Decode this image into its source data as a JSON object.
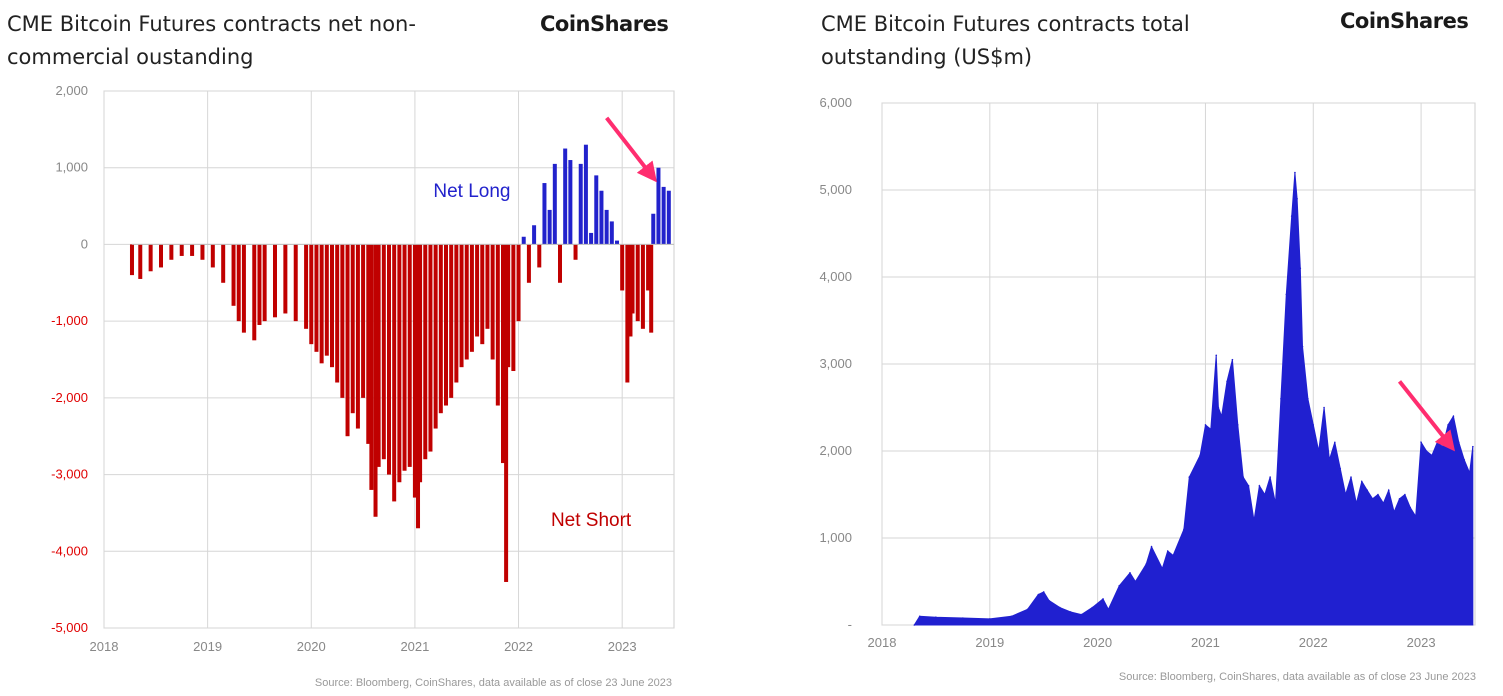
{
  "left": {
    "title": "CME Bitcoin Futures contracts net non-commercial oustanding",
    "logo": "CoinShares",
    "source": "Source: Bloomberg, CoinShares, data available as of close 23 June 2023",
    "chart_data": {
      "type": "bar",
      "title": "CME Bitcoin Futures contracts net non-commercial oustanding",
      "xlabel": "",
      "ylabel": "",
      "xlim": [
        2018.0,
        2023.5
      ],
      "ylim": [
        -5000,
        2000
      ],
      "yticks": [
        2000,
        1000,
        0,
        -1000,
        -2000,
        -3000,
        -4000,
        -5000
      ],
      "ytick_labels": [
        "2,000",
        "1,000",
        "0",
        "-1,000",
        "-2,000",
        "-3,000",
        "-4,000",
        "-5,000"
      ],
      "xticks": [
        2018,
        2019,
        2020,
        2021,
        2022,
        2023
      ],
      "xtick_labels": [
        "2018",
        "2019",
        "2020",
        "2021",
        "2022",
        "2023"
      ],
      "grid": true,
      "colors": {
        "positive": "#2222cc",
        "negative": "#c00000",
        "tick_positive": "#888888",
        "tick_negative": "#e00000"
      },
      "annotations": [
        {
          "text": "Net Long",
          "x": 2021.55,
          "y": 620,
          "color": "#2222cc"
        },
        {
          "text": "Net Short",
          "x": 2022.7,
          "y": -3670,
          "color": "#c00000"
        }
      ],
      "arrow": {
        "from": [
          2022.85,
          1650
        ],
        "to": [
          2023.3,
          870
        ],
        "color": "#ff2d6f"
      },
      "x": [
        2018.27,
        2018.35,
        2018.45,
        2018.55,
        2018.65,
        2018.75,
        2018.85,
        2018.95,
        2019.05,
        2019.15,
        2019.25,
        2019.3,
        2019.35,
        2019.45,
        2019.5,
        2019.55,
        2019.65,
        2019.75,
        2019.85,
        2019.95,
        2020.0,
        2020.05,
        2020.1,
        2020.15,
        2020.2,
        2020.25,
        2020.3,
        2020.35,
        2020.4,
        2020.45,
        2020.5,
        2020.55,
        2020.58,
        2020.62,
        2020.65,
        2020.7,
        2020.75,
        2020.8,
        2020.85,
        2020.9,
        2020.95,
        2021.0,
        2021.03,
        2021.05,
        2021.1,
        2021.15,
        2021.2,
        2021.25,
        2021.3,
        2021.35,
        2021.4,
        2021.45,
        2021.5,
        2021.55,
        2021.6,
        2021.65,
        2021.7,
        2021.75,
        2021.8,
        2021.85,
        2021.88,
        2021.9,
        2021.95,
        2022.0,
        2022.05,
        2022.1,
        2022.15,
        2022.2,
        2022.25,
        2022.3,
        2022.35,
        2022.4,
        2022.45,
        2022.5,
        2022.55,
        2022.6,
        2022.65,
        2022.7,
        2022.75,
        2022.8,
        2022.85,
        2022.9,
        2022.95,
        2023.0,
        2023.05,
        2023.08,
        2023.1,
        2023.15,
        2023.2,
        2023.25,
        2023.28,
        2023.3,
        2023.35,
        2023.4,
        2023.45
      ],
      "values": [
        -400,
        -450,
        -350,
        -300,
        -200,
        -150,
        -150,
        -200,
        -300,
        -500,
        -800,
        -1000,
        -1150,
        -1250,
        -1050,
        -1000,
        -950,
        -900,
        -1000,
        -1100,
        -1300,
        -1400,
        -1550,
        -1450,
        -1600,
        -1800,
        -2000,
        -2500,
        -2200,
        -2400,
        -2000,
        -2600,
        -3200,
        -3550,
        -2900,
        -2800,
        -3000,
        -3350,
        -3100,
        -2950,
        -2900,
        -3300,
        -3700,
        -3100,
        -2800,
        -2700,
        -2400,
        -2200,
        -2100,
        -2000,
        -1800,
        -1600,
        -1500,
        -1400,
        -1200,
        -1300,
        -1100,
        -1500,
        -2100,
        -2850,
        -4400,
        -1600,
        -1650,
        -1000,
        100,
        -500,
        250,
        -300,
        800,
        450,
        1050,
        -500,
        1250,
        1100,
        -200,
        1050,
        1300,
        150,
        900,
        700,
        450,
        300,
        50,
        -600,
        -1800,
        -1200,
        -900,
        -1000,
        -1100,
        -600,
        -1150,
        400,
        1000,
        750,
        700
      ]
    }
  },
  "right": {
    "title": "CME Bitcoin Futures contracts total outstanding (US$m)",
    "logo": "CoinShares",
    "source": "Source: Bloomberg, CoinShares, data available as of close 23 June 2023",
    "chart_data": {
      "type": "area",
      "title": "CME Bitcoin Futures contracts total outstanding (US$m)",
      "xlabel": "",
      "ylabel": "",
      "xlim": [
        2018.0,
        2023.5
      ],
      "ylim": [
        0,
        6000
      ],
      "yticks": [
        6000,
        5000,
        4000,
        3000,
        2000,
        1000,
        0
      ],
      "ytick_labels": [
        "6,000",
        "5,000",
        "4,000",
        "3,000",
        "2,000",
        "1,000",
        "-"
      ],
      "xticks": [
        2018,
        2019,
        2020,
        2021,
        2022,
        2023
      ],
      "xtick_labels": [
        "2018",
        "2019",
        "2020",
        "2021",
        "2022",
        "2023"
      ],
      "grid": true,
      "colors": {
        "fill": "#2020d0",
        "tick": "#888888"
      },
      "arrow": {
        "from": [
          2022.8,
          2800
        ],
        "to": [
          2023.28,
          2050
        ],
        "color": "#ff2d6f"
      },
      "x": [
        2018.3,
        2018.35,
        2018.5,
        2018.75,
        2019.0,
        2019.2,
        2019.35,
        2019.45,
        2019.5,
        2019.55,
        2019.65,
        2019.75,
        2019.85,
        2019.95,
        2020.05,
        2020.1,
        2020.2,
        2020.3,
        2020.35,
        2020.45,
        2020.5,
        2020.6,
        2020.65,
        2020.7,
        2020.8,
        2020.85,
        2020.95,
        2021.0,
        2021.05,
        2021.1,
        2021.12,
        2021.15,
        2021.2,
        2021.25,
        2021.3,
        2021.35,
        2021.4,
        2021.45,
        2021.5,
        2021.55,
        2021.6,
        2021.65,
        2021.7,
        2021.75,
        2021.8,
        2021.83,
        2021.85,
        2021.88,
        2021.9,
        2021.95,
        2022.0,
        2022.05,
        2022.1,
        2022.15,
        2022.2,
        2022.25,
        2022.3,
        2022.35,
        2022.4,
        2022.45,
        2022.5,
        2022.55,
        2022.6,
        2022.65,
        2022.7,
        2022.75,
        2022.8,
        2022.85,
        2022.9,
        2022.95,
        2023.0,
        2023.05,
        2023.1,
        2023.15,
        2023.2,
        2023.25,
        2023.3,
        2023.35,
        2023.4,
        2023.45,
        2023.48
      ],
      "values": [
        0,
        100,
        90,
        80,
        70,
        100,
        180,
        350,
        380,
        280,
        200,
        150,
        120,
        200,
        300,
        180,
        450,
        600,
        500,
        700,
        900,
        650,
        850,
        800,
        1100,
        1700,
        1950,
        2300,
        2250,
        3100,
        2500,
        2400,
        2800,
        3050,
        2300,
        1700,
        1600,
        1200,
        1600,
        1500,
        1700,
        1400,
        2600,
        3800,
        4700,
        5200,
        4900,
        4100,
        3200,
        2600,
        2300,
        2000,
        2500,
        1900,
        2100,
        1800,
        1500,
        1700,
        1400,
        1650,
        1550,
        1450,
        1500,
        1400,
        1550,
        1300,
        1450,
        1500,
        1350,
        1250,
        2100,
        2000,
        1950,
        2100,
        2050,
        2300,
        2400,
        2100,
        1900,
        1750,
        2050
      ]
    }
  }
}
